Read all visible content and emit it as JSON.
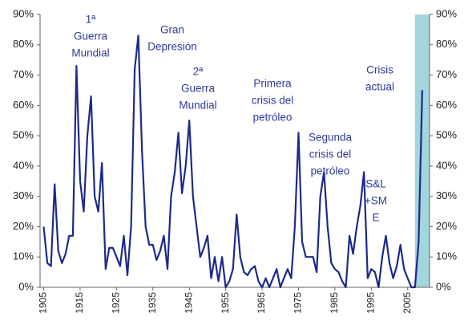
{
  "chart_data": {
    "type": "line",
    "x": [
      1905,
      1906,
      1907,
      1908,
      1909,
      1910,
      1911,
      1912,
      1913,
      1914,
      1915,
      1916,
      1917,
      1918,
      1919,
      1920,
      1921,
      1922,
      1923,
      1924,
      1925,
      1926,
      1927,
      1928,
      1929,
      1930,
      1931,
      1932,
      1933,
      1934,
      1935,
      1936,
      1937,
      1938,
      1939,
      1940,
      1941,
      1942,
      1943,
      1944,
      1945,
      1946,
      1947,
      1948,
      1949,
      1950,
      1951,
      1952,
      1953,
      1954,
      1955,
      1956,
      1957,
      1958,
      1959,
      1960,
      1961,
      1962,
      1963,
      1964,
      1965,
      1966,
      1967,
      1968,
      1969,
      1970,
      1971,
      1972,
      1973,
      1974,
      1975,
      1976,
      1977,
      1978,
      1979,
      1980,
      1981,
      1982,
      1983,
      1984,
      1985,
      1986,
      1987,
      1988,
      1989,
      1990,
      1991,
      1992,
      1993,
      1994,
      1995,
      1996,
      1997,
      1998,
      1999,
      2000,
      2001,
      2002,
      2003,
      2004,
      2005,
      2006,
      2007,
      2008,
      2009
    ],
    "series": [
      {
        "color": "#1c2a8a",
        "values": [
          20,
          8,
          7,
          34,
          12,
          8,
          11,
          17,
          17,
          73,
          35,
          25,
          50,
          63,
          30,
          25,
          41,
          6,
          13,
          13,
          10,
          7,
          17,
          4,
          20,
          72,
          83,
          45,
          20,
          14,
          14,
          9,
          12,
          17,
          6,
          30,
          38,
          51,
          31,
          40,
          55,
          30,
          20,
          10,
          13,
          17,
          3,
          10,
          2,
          10,
          0,
          2,
          6,
          24,
          10,
          5,
          4,
          6,
          7,
          2,
          0,
          3,
          0,
          3,
          6,
          0,
          3,
          6,
          3,
          20,
          51,
          15,
          10,
          10,
          10,
          5,
          30,
          38,
          20,
          8,
          6,
          5,
          2,
          0,
          17,
          11,
          20,
          27,
          38,
          3,
          6,
          5,
          0,
          10,
          17,
          8,
          3,
          7,
          14,
          6,
          3,
          0,
          0,
          15,
          65
        ]
      }
    ],
    "xlim": [
      1904,
      2011
    ],
    "xticks": [
      1905,
      1915,
      1925,
      1935,
      1945,
      1955,
      1965,
      1975,
      1985,
      1995,
      2005
    ],
    "ylim": [
      0,
      90
    ],
    "yticks": [
      {
        "value": 0,
        "label": "0%"
      },
      {
        "value": 10,
        "label": "10%"
      },
      {
        "value": 20,
        "label": "20%"
      },
      {
        "value": 30,
        "label": "30%"
      },
      {
        "value": 40,
        "label": "40%"
      },
      {
        "value": 50,
        "label": "50%"
      },
      {
        "value": 60,
        "label": "60%"
      },
      {
        "value": 70,
        "label": "70%"
      },
      {
        "value": 80,
        "label": "80%"
      },
      {
        "value": 90,
        "label": "90%"
      }
    ],
    "y2lim": [
      0,
      90
    ],
    "y2ticks": [
      {
        "value": 0,
        "label": "0%"
      },
      {
        "value": 10,
        "label": "10%"
      },
      {
        "value": 20,
        "label": "20%"
      },
      {
        "value": 30,
        "label": "30%"
      },
      {
        "value": 40,
        "label": "40%"
      },
      {
        "value": 50,
        "label": "50%"
      },
      {
        "value": 60,
        "label": "60%"
      },
      {
        "value": 70,
        "label": "70%"
      },
      {
        "value": 80,
        "label": "80%"
      },
      {
        "value": 90,
        "label": "90%"
      }
    ],
    "highlight": {
      "range": [
        2007,
        2011
      ],
      "color": "#a3d6dc"
    },
    "annotations": [
      {
        "lines": [
          "1ª",
          "Guerra",
          "Mundial"
        ]
      },
      {
        "lines": [
          "Gran",
          "Depresión"
        ]
      },
      {
        "lines": [
          "2ª",
          "Guerra",
          "Mundial"
        ]
      },
      {
        "lines": [
          "Primera",
          "crisis del",
          "petróleo"
        ]
      },
      {
        "lines": [
          "Segunda",
          "crisis del",
          "petróleo"
        ]
      },
      {
        "lines": [
          "S&L",
          "+SM",
          "E"
        ]
      },
      {
        "lines": [
          "Crisis",
          "actual"
        ]
      }
    ]
  }
}
